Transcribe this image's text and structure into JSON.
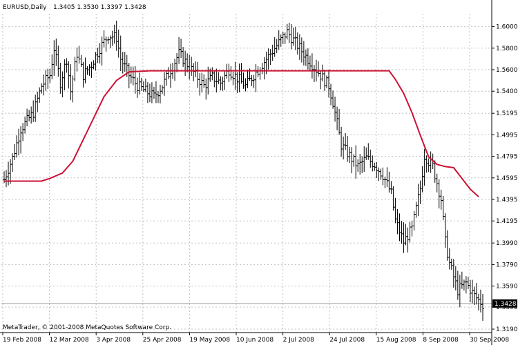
{
  "header": {
    "symbol_period": "EURUSD,Daily",
    "ohlc": "1.3405 1.3530 1.3397 1.3428"
  },
  "footer": {
    "copyright": "MetaTrader, © 2001-2008 MetaQuotes Software Corp."
  },
  "colors": {
    "background": "#ffffff",
    "bars": "#000000",
    "indicator": "#cc1133",
    "grid": "#c0c0c0",
    "last_price_bg": "#000000",
    "last_price_text": "#ffffff"
  },
  "chart_data": {
    "type": "ohlc",
    "title": "EURUSD,Daily",
    "grid": true,
    "ylim": [
      1.319,
      1.61
    ],
    "y_ticks": [
      "1.6000",
      "1.5800",
      "1.5600",
      "1.5400",
      "1.5195",
      "1.4995",
      "1.4795",
      "1.4595",
      "1.4395",
      "1.4195",
      "1.3990",
      "1.3790",
      "1.3590",
      "1.3395",
      "1.3190"
    ],
    "x_ticks": [
      "19 Feb 2008",
      "12 Mar 2008",
      "3 Apr 2008",
      "25 Apr 2008",
      "19 May 2008",
      "10 Jun 2008",
      "2 Jul 2008",
      "24 Jul 2008",
      "15 Aug 2008",
      "8 Sep 2008",
      "30 Sep 2008"
    ],
    "last_price": "1.3428",
    "bar_keypoints": [
      [
        0,
        1.458
      ],
      [
        4,
        1.478
      ],
      [
        8,
        1.505
      ],
      [
        14,
        1.52
      ],
      [
        18,
        1.545
      ],
      [
        22,
        1.555
      ],
      [
        24,
        1.58
      ],
      [
        27,
        1.548
      ],
      [
        30,
        1.57
      ],
      [
        32,
        1.54
      ],
      [
        35,
        1.575
      ],
      [
        38,
        1.555
      ],
      [
        42,
        1.565
      ],
      [
        46,
        1.58
      ],
      [
        50,
        1.592
      ],
      [
        54,
        1.59
      ],
      [
        56,
        1.57
      ],
      [
        60,
        1.555
      ],
      [
        64,
        1.545
      ],
      [
        68,
        1.54
      ],
      [
        72,
        1.535
      ],
      [
        76,
        1.545
      ],
      [
        80,
        1.56
      ],
      [
        84,
        1.575
      ],
      [
        88,
        1.565
      ],
      [
        92,
        1.555
      ],
      [
        96,
        1.545
      ],
      [
        100,
        1.553
      ],
      [
        104,
        1.548
      ],
      [
        108,
        1.56
      ],
      [
        112,
        1.552
      ],
      [
        116,
        1.545
      ],
      [
        120,
        1.555
      ],
      [
        124,
        1.565
      ],
      [
        128,
        1.575
      ],
      [
        132,
        1.585
      ],
      [
        136,
        1.595
      ],
      [
        140,
        1.585
      ],
      [
        144,
        1.575
      ],
      [
        148,
        1.565
      ],
      [
        152,
        1.555
      ],
      [
        156,
        1.545
      ],
      [
        158,
        1.53
      ],
      [
        162,
        1.49
      ],
      [
        166,
        1.48
      ],
      [
        170,
        1.47
      ],
      [
        174,
        1.478
      ],
      [
        178,
        1.472
      ],
      [
        182,
        1.462
      ],
      [
        186,
        1.445
      ],
      [
        188,
        1.42
      ],
      [
        192,
        1.4
      ],
      [
        196,
        1.412
      ],
      [
        200,
        1.45
      ],
      [
        202,
        1.48
      ],
      [
        206,
        1.47
      ],
      [
        210,
        1.44
      ],
      [
        212,
        1.4
      ],
      [
        214,
        1.38
      ],
      [
        218,
        1.355
      ],
      [
        222,
        1.362
      ],
      [
        226,
        1.35
      ],
      [
        230,
        1.342
      ]
    ],
    "series": [
      {
        "type": "line",
        "color": "#cc1133",
        "points": [
          [
            0,
            1.4565
          ],
          [
            18,
            1.4565
          ],
          [
            22,
            1.459
          ],
          [
            28,
            1.464
          ],
          [
            33,
            1.475
          ],
          [
            38,
            1.495
          ],
          [
            43,
            1.515
          ],
          [
            48,
            1.535
          ],
          [
            54,
            1.55
          ],
          [
            60,
            1.558
          ],
          [
            70,
            1.559
          ],
          [
            150,
            1.559
          ],
          [
            185,
            1.559
          ],
          [
            188,
            1.551
          ],
          [
            192,
            1.538
          ],
          [
            196,
            1.52
          ],
          [
            200,
            1.499
          ],
          [
            204,
            1.479
          ],
          [
            208,
            1.472
          ],
          [
            212,
            1.47
          ],
          [
            216,
            1.469
          ],
          [
            220,
            1.459
          ],
          [
            224,
            1.449
          ],
          [
            228,
            1.442
          ]
        ]
      }
    ]
  }
}
